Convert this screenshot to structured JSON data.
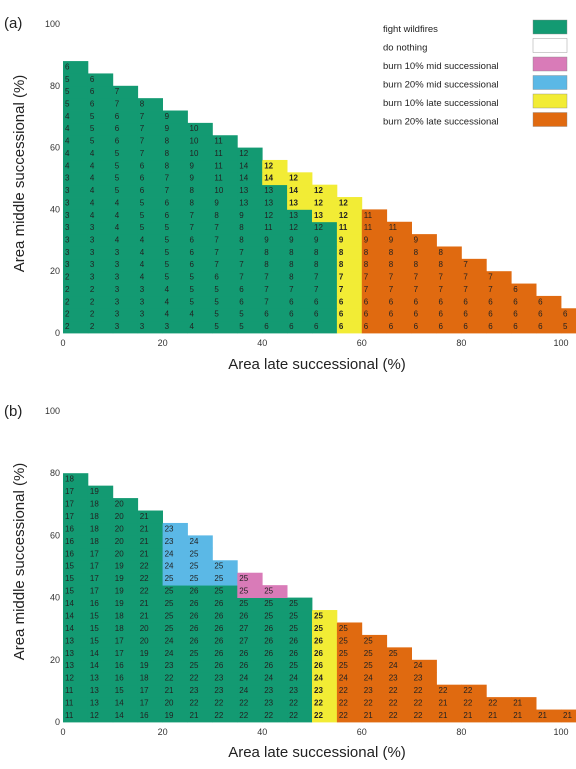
{
  "colors": {
    "fight wildfires": "#139a72",
    "do nothing": "#ffffff",
    "burn 10% mid successional": "#d97bb8",
    "burn 20% mid successional": "#5bb8e6",
    "burn 10% late successional": "#f2ec35",
    "burn 20% late successional": "#e06a10"
  },
  "legend": [
    {
      "label": "fight wildfires",
      "color": "#139a72"
    },
    {
      "label": "do nothing",
      "color": "#ffffff"
    },
    {
      "label": "burn 10% mid successional",
      "color": "#d97bb8"
    },
    {
      "label": "burn 20% mid successional",
      "color": "#5bb8e6"
    },
    {
      "label": "burn 10% late successional",
      "color": "#f2ec35"
    },
    {
      "label": "burn 20% late successional",
      "color": "#e06a10"
    }
  ],
  "chart_data": [
    {
      "type": "heatmap",
      "panel_label": "(a)",
      "xlabel": "Area late successional (%)",
      "ylabel": "Area middle successional (%)",
      "xlim": [
        0,
        100
      ],
      "ylim": [
        0,
        100
      ],
      "x_ticks": [
        0,
        20,
        40,
        60,
        80,
        100
      ],
      "y_ticks": [
        0,
        20,
        40,
        60,
        80,
        100
      ],
      "x_step": 5,
      "y_step": 4,
      "rows": [
        {
          "y": 0,
          "values": [
            2,
            2,
            3,
            3,
            3,
            4,
            5,
            5,
            6,
            6,
            6,
            6,
            6,
            6,
            6,
            6,
            6,
            6,
            6,
            6,
            5,
            5
          ]
        },
        {
          "y": 4,
          "values": [
            2,
            2,
            3,
            3,
            4,
            4,
            5,
            5,
            6,
            6,
            6,
            6,
            6,
            6,
            6,
            6,
            6,
            6,
            6,
            6,
            6
          ]
        },
        {
          "y": 8,
          "values": [
            2,
            2,
            3,
            3,
            4,
            5,
            5,
            6,
            7,
            6,
            6,
            6,
            6,
            6,
            6,
            6,
            6,
            6,
            6,
            6
          ]
        },
        {
          "y": 12,
          "values": [
            2,
            2,
            3,
            3,
            4,
            5,
            5,
            6,
            7,
            7,
            7,
            7,
            7,
            7,
            7,
            7,
            7,
            7,
            6
          ]
        },
        {
          "y": 16,
          "values": [
            2,
            3,
            3,
            4,
            5,
            5,
            6,
            7,
            7,
            8,
            7,
            7,
            7,
            7,
            7,
            7,
            7,
            7
          ]
        },
        {
          "y": 20,
          "values": [
            3,
            3,
            3,
            4,
            5,
            6,
            7,
            7,
            8,
            8,
            8,
            8,
            8,
            8,
            8,
            8,
            7
          ]
        },
        {
          "y": 24,
          "values": [
            3,
            3,
            3,
            4,
            5,
            6,
            7,
            7,
            8,
            8,
            8,
            8,
            8,
            8,
            8,
            8
          ]
        },
        {
          "y": 28,
          "values": [
            3,
            3,
            4,
            4,
            5,
            6,
            7,
            8,
            9,
            9,
            9,
            9,
            9,
            9,
            9
          ]
        },
        {
          "y": 32,
          "values": [
            3,
            3,
            4,
            5,
            5,
            7,
            7,
            8,
            11,
            12,
            12,
            11,
            11,
            11
          ]
        },
        {
          "y": 36,
          "values": [
            3,
            4,
            4,
            5,
            6,
            7,
            8,
            9,
            12,
            13,
            13,
            12,
            11
          ]
        },
        {
          "y": 40,
          "values": [
            3,
            4,
            4,
            5,
            6,
            8,
            9,
            13,
            13,
            13,
            12,
            12
          ]
        },
        {
          "y": 44,
          "values": [
            3,
            4,
            5,
            6,
            7,
            8,
            10,
            13,
            13,
            14,
            12
          ]
        },
        {
          "y": 48,
          "values": [
            3,
            4,
            5,
            6,
            7,
            9,
            11,
            14,
            14,
            12
          ]
        },
        {
          "y": 52,
          "values": [
            4,
            4,
            5,
            6,
            8,
            9,
            11,
            14,
            12
          ]
        },
        {
          "y": 56,
          "values": [
            4,
            4,
            5,
            7,
            8,
            10,
            11,
            12
          ]
        },
        {
          "y": 60,
          "values": [
            4,
            5,
            6,
            7,
            8,
            10,
            11
          ]
        },
        {
          "y": 64,
          "values": [
            4,
            5,
            6,
            7,
            9,
            10
          ]
        },
        {
          "y": 68,
          "values": [
            4,
            5,
            6,
            7,
            9
          ]
        },
        {
          "y": 72,
          "values": [
            5,
            6,
            7,
            8
          ]
        },
        {
          "y": 76,
          "values": [
            5,
            6,
            7
          ]
        },
        {
          "y": 80,
          "values": [
            5,
            6
          ]
        },
        {
          "y": 84,
          "values": [
            6
          ]
        }
      ],
      "strategy_rules": [
        {
          "strategy": "burn 20% late successional",
          "x_min": 60,
          "y_max": 36
        },
        {
          "strategy": "burn 10% late successional",
          "x_min": 55,
          "y_max": 28
        },
        {
          "strategy": "burn 10% late successional",
          "diag": 19,
          "y_min": 32,
          "y_max": 40
        },
        {
          "strategy": "burn 10% late successional",
          "diag": 20,
          "y_min": 32,
          "y_max": 48
        },
        {
          "strategy": "burn 10% late successional",
          "diag": 21,
          "y_min": 32,
          "y_max": 52
        },
        {
          "strategy": "burn 20% late successional",
          "diag": 21,
          "y_min": 0,
          "y_max": 36
        },
        {
          "strategy": "fight wildfires",
          "default": true
        }
      ]
    },
    {
      "type": "heatmap",
      "panel_label": "(b)",
      "xlabel": "Area late successional (%)",
      "ylabel": "Area middle successional (%)",
      "xlim": [
        0,
        100
      ],
      "ylim": [
        0,
        100
      ],
      "x_ticks": [
        0,
        20,
        40,
        60,
        80,
        100
      ],
      "y_ticks": [
        0,
        20,
        40,
        60,
        80,
        100
      ],
      "x_step": 5,
      "y_step": 4,
      "rows": [
        {
          "y": 0,
          "values": [
            11,
            12,
            14,
            16,
            19,
            21,
            22,
            22,
            22,
            22,
            22,
            22,
            21,
            22,
            22,
            21,
            21,
            21,
            21,
            21,
            21
          ]
        },
        {
          "y": 4,
          "values": [
            11,
            13,
            14,
            17,
            20,
            22,
            22,
            22,
            23,
            22,
            22,
            22,
            22,
            22,
            22,
            21,
            22,
            22,
            21
          ]
        },
        {
          "y": 8,
          "values": [
            11,
            13,
            15,
            17,
            21,
            23,
            23,
            24,
            23,
            23,
            23,
            22,
            23,
            22,
            22,
            22,
            22
          ]
        },
        {
          "y": 12,
          "values": [
            12,
            13,
            16,
            18,
            22,
            22,
            23,
            24,
            24,
            24,
            24,
            24,
            24,
            23,
            23
          ]
        },
        {
          "y": 16,
          "values": [
            13,
            14,
            16,
            19,
            23,
            25,
            26,
            26,
            26,
            25,
            26,
            25,
            25,
            24,
            24
          ]
        },
        {
          "y": 20,
          "values": [
            13,
            14,
            17,
            19,
            24,
            25,
            26,
            26,
            26,
            26,
            26,
            25,
            25,
            25
          ]
        },
        {
          "y": 24,
          "values": [
            13,
            15,
            17,
            20,
            24,
            26,
            26,
            27,
            26,
            26,
            26,
            25,
            25
          ]
        },
        {
          "y": 28,
          "values": [
            14,
            15,
            18,
            20,
            25,
            26,
            26,
            27,
            26,
            25,
            25,
            25
          ]
        },
        {
          "y": 32,
          "values": [
            14,
            15,
            18,
            21,
            25,
            26,
            26,
            26,
            25,
            25,
            25
          ]
        },
        {
          "y": 36,
          "values": [
            14,
            16,
            19,
            21,
            25,
            26,
            26,
            25,
            25,
            25
          ]
        },
        {
          "y": 40,
          "values": [
            15,
            17,
            19,
            22,
            25,
            26,
            25,
            25,
            25
          ]
        },
        {
          "y": 44,
          "values": [
            15,
            17,
            19,
            22,
            25,
            25,
            25,
            25
          ]
        },
        {
          "y": 48,
          "values": [
            15,
            17,
            19,
            22,
            24,
            25,
            25
          ]
        },
        {
          "y": 52,
          "values": [
            16,
            17,
            20,
            21,
            24,
            25
          ]
        },
        {
          "y": 56,
          "values": [
            16,
            18,
            20,
            21,
            23,
            24
          ]
        },
        {
          "y": 60,
          "values": [
            16,
            18,
            20,
            21,
            23
          ]
        },
        {
          "y": 64,
          "values": [
            17,
            18,
            20,
            21
          ]
        },
        {
          "y": 68,
          "values": [
            17,
            18,
            20
          ]
        },
        {
          "y": 72,
          "values": [
            17,
            19
          ]
        },
        {
          "y": 76,
          "values": [
            18
          ]
        }
      ],
      "strategy_rules": [
        {
          "strategy": "burn 20% late successional",
          "x_min": 55
        },
        {
          "strategy": "burn 10% late successional",
          "x_min": 50
        },
        {
          "strategy": "burn 10% mid successional",
          "x_min": 35,
          "y_min": 40,
          "y_max": 44
        },
        {
          "strategy": "burn 20% mid successional",
          "x_min": 20,
          "y_min": 48
        },
        {
          "strategy": "burn 20% mid successional",
          "x_min": 20,
          "y_min": 44
        },
        {
          "strategy": "fight wildfires",
          "default": true
        }
      ]
    }
  ]
}
